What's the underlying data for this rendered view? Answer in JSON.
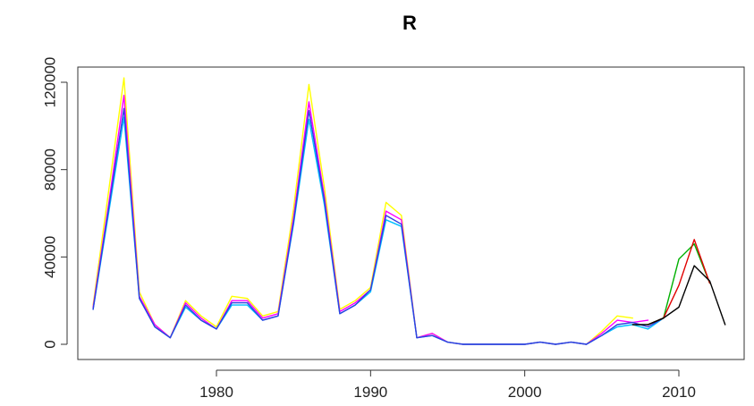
{
  "chart_data": {
    "type": "line",
    "title": "R",
    "xlabel": "",
    "ylabel": "",
    "xlim": [
      1970,
      2015
    ],
    "ylim": [
      0,
      125000
    ],
    "x_ticks": [
      1980,
      1990,
      2000,
      2010
    ],
    "x_tick_labels": [
      "1980",
      "1990",
      "2000",
      "2010"
    ],
    "y_ticks": [
      0,
      40000,
      80000,
      120000
    ],
    "y_tick_labels": [
      "0",
      "40000",
      "80000",
      "120000"
    ],
    "grid": false,
    "legend": "none",
    "series": [
      {
        "color": "#ffff00",
        "x": [
          1972,
          1973,
          1974,
          1975,
          1976,
          1977,
          1978,
          1979,
          1980,
          1981,
          1982,
          1983,
          1984,
          1985,
          1986,
          1987,
          1988,
          1989,
          1990,
          1991,
          1992,
          1993,
          1994,
          1995,
          1996,
          1997,
          1998,
          1999,
          2000,
          2001,
          2002,
          2003,
          2004,
          2005,
          2006,
          2007
        ],
        "y": [
          18000,
          70000,
          122000,
          24000,
          9000,
          3000,
          20000,
          13000,
          8000,
          22000,
          21000,
          13000,
          15000,
          62000,
          119000,
          72000,
          16000,
          20000,
          26000,
          65000,
          59000,
          3000,
          5000,
          1000,
          0,
          0,
          0,
          0,
          0,
          1000,
          0,
          1000,
          0,
          6000,
          13000,
          12000
        ]
      },
      {
        "color": "#ff00ff",
        "x": [
          1972,
          1973,
          1974,
          1975,
          1976,
          1977,
          1978,
          1979,
          1980,
          1981,
          1982,
          1983,
          1984,
          1985,
          1986,
          1987,
          1988,
          1989,
          1990,
          1991,
          1992,
          1993,
          1994,
          1995,
          1996,
          1997,
          1998,
          1999,
          2000,
          2001,
          2002,
          2003,
          2004,
          2005,
          2006,
          2007,
          2008
        ],
        "y": [
          17000,
          64000,
          114000,
          22000,
          9000,
          3000,
          19000,
          12000,
          7000,
          20000,
          20000,
          12000,
          14000,
          58000,
          111000,
          68000,
          15000,
          19000,
          25000,
          61000,
          57000,
          3000,
          5000,
          1000,
          0,
          0,
          0,
          0,
          0,
          1000,
          0,
          1000,
          0,
          5000,
          11000,
          10000,
          11000
        ]
      },
      {
        "color": "#00bfff",
        "x": [
          1972,
          1973,
          1974,
          1975,
          1976,
          1977,
          1978,
          1979,
          1980,
          1981,
          1982,
          1983,
          1984,
          1985,
          1986,
          1987,
          1988,
          1989,
          1990,
          1991,
          1992,
          1993,
          1994,
          1995,
          1996,
          1997,
          1998,
          1999,
          2000,
          2001,
          2002,
          2003,
          2004,
          2005,
          2006,
          2007,
          2008,
          2009
        ],
        "y": [
          16000,
          60000,
          104000,
          21000,
          8000,
          3000,
          17000,
          11000,
          7000,
          18000,
          18000,
          11000,
          13000,
          55000,
          103000,
          64000,
          14000,
          18000,
          24000,
          57000,
          54000,
          3000,
          4000,
          1000,
          0,
          0,
          0,
          0,
          0,
          1000,
          0,
          1000,
          0,
          4000,
          8000,
          9000,
          7000,
          12000
        ]
      },
      {
        "color": "#2f3fe0",
        "x": [
          1972,
          1973,
          1974,
          1975,
          1976,
          1977,
          1978,
          1979,
          1980,
          1981,
          1982,
          1983,
          1984,
          1985,
          1986,
          1987,
          1988,
          1989,
          1990,
          1991,
          1992,
          1993,
          1994,
          1995,
          1996,
          1997,
          1998,
          1999,
          2000,
          2001,
          2002,
          2003,
          2004,
          2005,
          2006,
          2007,
          2008,
          2009
        ],
        "y": [
          16000,
          62000,
          108000,
          21000,
          8000,
          3000,
          18000,
          11000,
          7000,
          19000,
          19000,
          11000,
          13000,
          56000,
          107000,
          66000,
          14000,
          18000,
          25000,
          59000,
          55000,
          3000,
          4000,
          1000,
          0,
          0,
          0,
          0,
          0,
          1000,
          0,
          1000,
          0,
          4000,
          9000,
          10000,
          8000,
          12000
        ]
      },
      {
        "color": "#00b000",
        "x": [
          2008,
          2009,
          2010,
          2011,
          2012
        ],
        "y": [
          9000,
          12000,
          39000,
          46000,
          28000
        ]
      },
      {
        "color": "#e00000",
        "x": [
          2008,
          2009,
          2010,
          2011,
          2012
        ],
        "y": [
          9000,
          12000,
          27000,
          48000,
          28000
        ]
      },
      {
        "color": "#000000",
        "x": [
          2007,
          2008,
          2009,
          2010,
          2011,
          2012,
          2013
        ],
        "y": [
          9000,
          9000,
          12000,
          17000,
          36000,
          29000,
          9000
        ]
      }
    ]
  }
}
